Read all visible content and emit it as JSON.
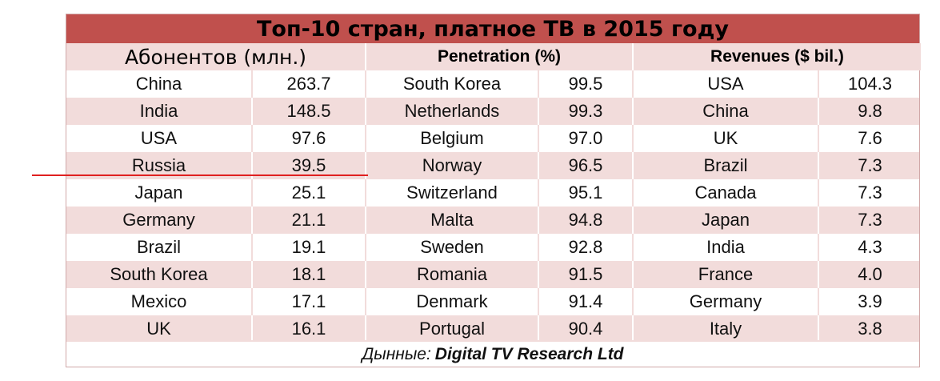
{
  "chart_data": {
    "type": "table",
    "title": "Топ-10 стран, платное ТВ в 2015 году",
    "groups": [
      {
        "header": "Абонентов (млн.)",
        "rows": [
          [
            "China",
            "263.7"
          ],
          [
            "India",
            "148.5"
          ],
          [
            "USA",
            "97.6"
          ],
          [
            "Russia",
            "39.5"
          ],
          [
            "Japan",
            "25.1"
          ],
          [
            "Germany",
            "21.1"
          ],
          [
            "Brazil",
            "19.1"
          ],
          [
            "South Korea",
            "18.1"
          ],
          [
            "Mexico",
            "17.1"
          ],
          [
            "UK",
            "16.1"
          ]
        ]
      },
      {
        "header": "Penetration (%)",
        "rows": [
          [
            "South Korea",
            "99.5"
          ],
          [
            "Netherlands",
            "99.3"
          ],
          [
            "Belgium",
            "97.0"
          ],
          [
            "Norway",
            "96.5"
          ],
          [
            "Switzerland",
            "95.1"
          ],
          [
            "Malta",
            "94.8"
          ],
          [
            "Sweden",
            "92.8"
          ],
          [
            "Romania",
            "91.5"
          ],
          [
            "Denmark",
            "91.4"
          ],
          [
            "Portugal",
            "90.4"
          ]
        ]
      },
      {
        "header": "Revenues ($ bil.)",
        "rows": [
          [
            "USA",
            "104.3"
          ],
          [
            "China",
            "9.8"
          ],
          [
            "UK",
            "7.6"
          ],
          [
            "Brazil",
            "7.3"
          ],
          [
            "Canada",
            "7.3"
          ],
          [
            "Japan",
            "7.3"
          ],
          [
            "India",
            "4.3"
          ],
          [
            "France",
            "4.0"
          ],
          [
            "Germany",
            "3.9"
          ],
          [
            "Italy",
            "3.8"
          ]
        ]
      }
    ],
    "source_prefix": "Дынные:",
    "source": "Digital TV Research Ltd",
    "colors": {
      "title_bg": "#c0504d",
      "band": "#f2dcdb",
      "marker_line": "#e02020"
    }
  }
}
